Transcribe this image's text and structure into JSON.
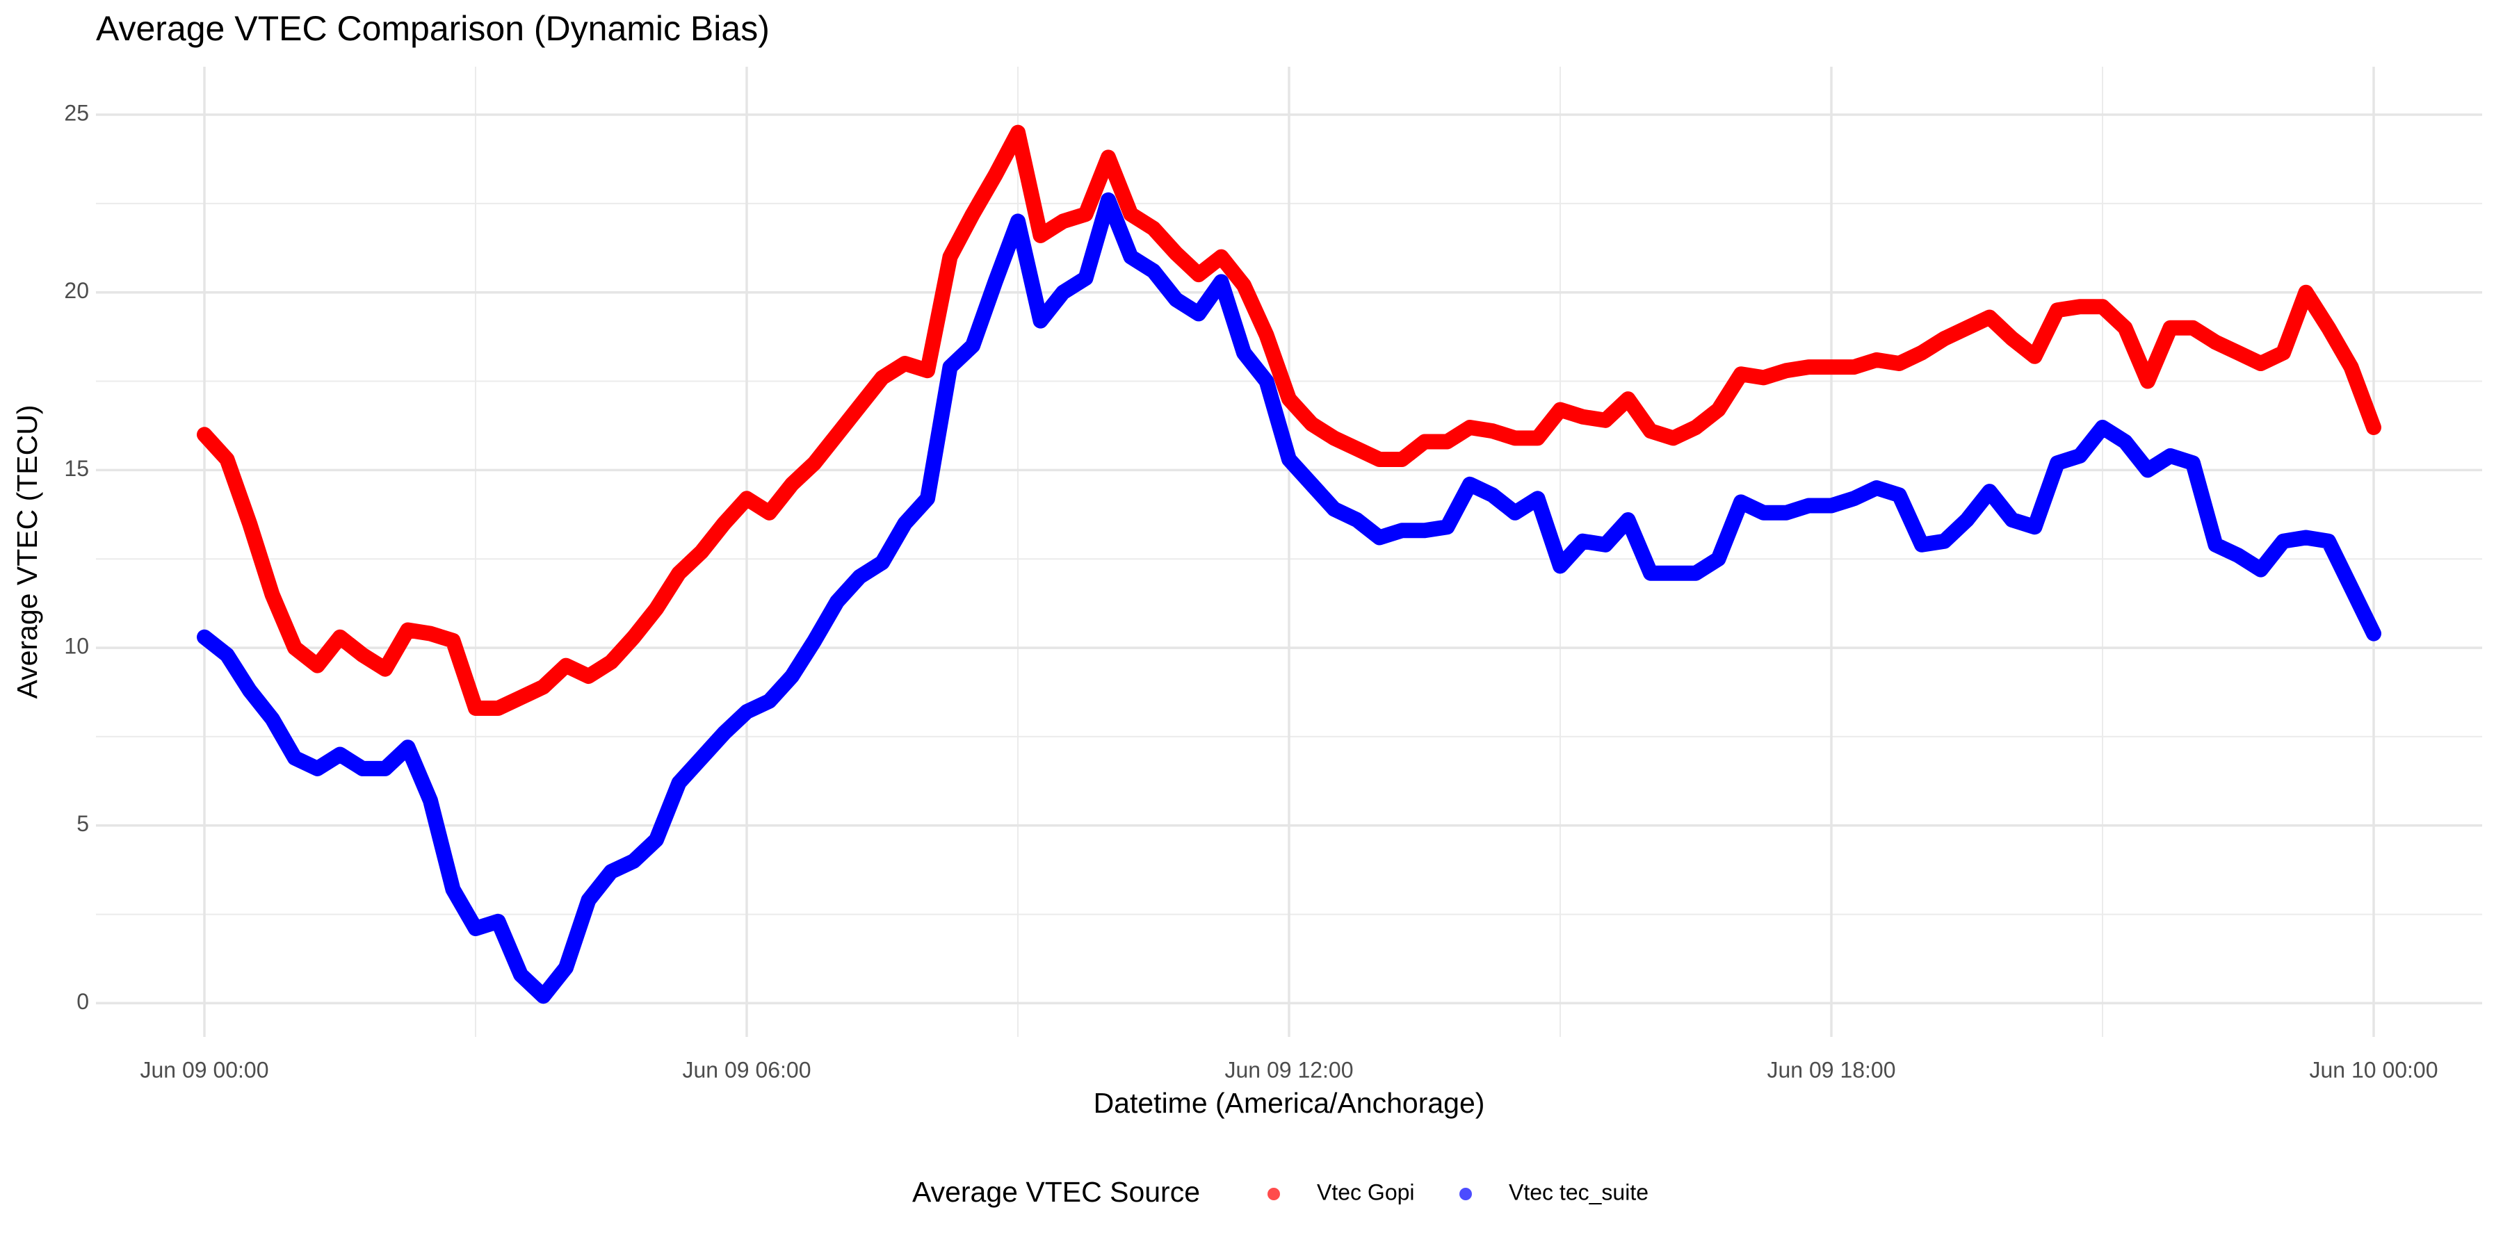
{
  "chart_data": {
    "type": "line",
    "title": "Average VTEC Comparison (Dynamic Bias)",
    "x_label": "Datetime (America/Anchorage)",
    "y_label": "Average VTEC (TECU)",
    "legend_title": "Average VTEC Source",
    "legend": "bottom",
    "grid": true,
    "xlim": [
      -1.2,
      25.2
    ],
    "ylim": [
      -0.95,
      26.35
    ],
    "xticks": [
      {
        "value": 0,
        "label": "Jun 09 00:00"
      },
      {
        "value": 6,
        "label": "Jun 09 06:00"
      },
      {
        "value": 12,
        "label": "Jun 09 12:00"
      },
      {
        "value": 18,
        "label": "Jun 09 18:00"
      },
      {
        "value": 24,
        "label": "Jun 10 00:00"
      }
    ],
    "yticks": [
      0,
      5,
      10,
      15,
      20,
      25
    ],
    "x": [
      0,
      0.25,
      0.5,
      0.75,
      1,
      1.25,
      1.5,
      1.75,
      2,
      2.25,
      2.5,
      2.75,
      3,
      3.25,
      3.5,
      3.75,
      4,
      4.25,
      4.5,
      4.75,
      5,
      5.25,
      5.5,
      5.75,
      6,
      6.25,
      6.5,
      6.75,
      7,
      7.25,
      7.5,
      7.75,
      8,
      8.25,
      8.5,
      8.75,
      9,
      9.25,
      9.5,
      9.75,
      10,
      10.25,
      10.5,
      10.75,
      11,
      11.25,
      11.5,
      11.75,
      12,
      12.25,
      12.5,
      12.75,
      13,
      13.25,
      13.5,
      13.75,
      14,
      14.25,
      14.5,
      14.75,
      15,
      15.25,
      15.5,
      15.75,
      16,
      16.25,
      16.5,
      16.75,
      17,
      17.25,
      17.5,
      17.75,
      18,
      18.25,
      18.5,
      18.75,
      19,
      19.25,
      19.5,
      19.75,
      20,
      20.25,
      20.5,
      20.75,
      21,
      21.25,
      21.5,
      21.75,
      22,
      22.25,
      22.5,
      22.75,
      23,
      23.25,
      23.5,
      23.75,
      24
    ],
    "series": [
      {
        "name": "Vtec Gopi",
        "color": "#ff0000",
        "values": [
          16.0,
          15.3,
          13.5,
          11.5,
          10.0,
          9.5,
          10.3,
          9.8,
          9.4,
          10.5,
          10.4,
          10.2,
          8.3,
          8.3,
          8.6,
          8.9,
          9.5,
          9.2,
          9.6,
          10.3,
          11.1,
          12.1,
          12.7,
          13.5,
          14.2,
          13.8,
          14.6,
          15.2,
          16.0,
          16.8,
          17.6,
          18.0,
          17.8,
          21.0,
          22.2,
          23.3,
          24.5,
          21.6,
          22.0,
          22.2,
          23.8,
          22.2,
          21.8,
          21.1,
          20.5,
          21.0,
          20.2,
          18.8,
          17.0,
          16.3,
          15.9,
          15.6,
          15.3,
          15.3,
          15.8,
          15.8,
          16.2,
          16.1,
          15.9,
          15.9,
          16.7,
          16.5,
          16.4,
          17.0,
          16.1,
          15.9,
          16.2,
          16.7,
          17.7,
          17.6,
          17.8,
          17.9,
          17.9,
          17.9,
          18.1,
          18.0,
          18.3,
          18.7,
          19.0,
          19.3,
          18.7,
          18.2,
          19.5,
          19.6,
          19.6,
          19.0,
          17.5,
          19.0,
          19.0,
          18.6,
          18.3,
          18.0,
          18.3,
          20.0,
          19.0,
          17.9,
          16.2
        ]
      },
      {
        "name": "Vtec tec_suite",
        "color": "#0000ff",
        "values": [
          10.3,
          9.8,
          8.8,
          8.0,
          6.9,
          6.6,
          7.0,
          6.6,
          6.6,
          7.2,
          5.7,
          3.2,
          2.1,
          2.3,
          0.8,
          0.2,
          1.0,
          2.9,
          3.7,
          4.0,
          4.6,
          6.2,
          6.9,
          7.6,
          8.2,
          8.5,
          9.2,
          10.2,
          11.3,
          12.0,
          12.4,
          13.5,
          14.2,
          17.9,
          18.5,
          20.3,
          22.0,
          19.2,
          20.0,
          20.4,
          22.6,
          21.0,
          20.6,
          19.8,
          19.4,
          20.3,
          18.3,
          17.5,
          15.3,
          14.6,
          13.9,
          13.6,
          13.1,
          13.3,
          13.3,
          13.4,
          14.6,
          14.3,
          13.8,
          14.2,
          12.3,
          13.0,
          12.9,
          13.6,
          12.1,
          12.1,
          12.1,
          12.5,
          14.1,
          13.8,
          13.8,
          14.0,
          14.0,
          14.2,
          14.5,
          14.3,
          12.9,
          13.0,
          13.6,
          14.4,
          13.6,
          13.4,
          15.2,
          15.4,
          16.2,
          15.8,
          15.0,
          15.4,
          15.2,
          12.9,
          12.6,
          12.2,
          13.0,
          13.1,
          13.0,
          11.7,
          10.4
        ]
      }
    ]
  }
}
